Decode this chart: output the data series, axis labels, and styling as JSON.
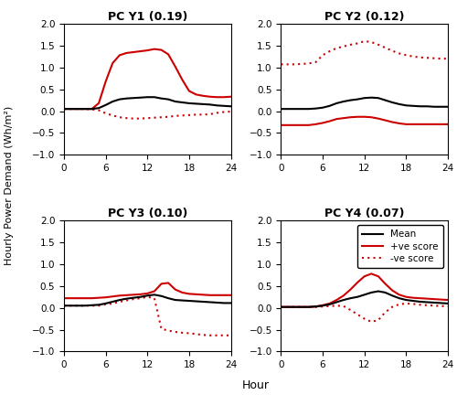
{
  "titles": [
    "PC Y1 (0.19)",
    "PC Y2 (0.12)",
    "PC Y3 (0.10)",
    "PC Y4 (0.07)"
  ],
  "ylabel": "Hourly Power Demand (Wh/m²)",
  "xlabel": "Hour",
  "ylim": [
    -1,
    2
  ],
  "yticks": [
    -1,
    -0.5,
    0,
    0.5,
    1,
    1.5,
    2
  ],
  "xticks": [
    0,
    6,
    12,
    18,
    24
  ],
  "xlim": [
    0,
    24
  ],
  "legend_labels": [
    "Mean",
    "+ve score",
    "-ve score"
  ],
  "mean_color": "#000000",
  "pos_color": "#cc0000",
  "neg_color": "#cc0000",
  "line_width": 1.5,
  "hours": [
    0,
    1,
    2,
    3,
    4,
    5,
    6,
    7,
    8,
    9,
    10,
    11,
    12,
    13,
    14,
    15,
    16,
    17,
    18,
    19,
    20,
    21,
    22,
    23,
    24
  ],
  "pc1_mean": [
    0.05,
    0.05,
    0.05,
    0.05,
    0.05,
    0.07,
    0.14,
    0.22,
    0.27,
    0.29,
    0.3,
    0.31,
    0.32,
    0.32,
    0.29,
    0.27,
    0.22,
    0.2,
    0.18,
    0.17,
    0.16,
    0.15,
    0.13,
    0.12,
    0.11
  ],
  "pc1_pos": [
    0.05,
    0.05,
    0.05,
    0.05,
    0.05,
    0.18,
    0.68,
    1.1,
    1.28,
    1.33,
    1.35,
    1.37,
    1.39,
    1.42,
    1.4,
    1.3,
    1.02,
    0.72,
    0.46,
    0.38,
    0.35,
    0.33,
    0.32,
    0.32,
    0.33
  ],
  "pc1_neg": [
    0.05,
    0.05,
    0.05,
    0.05,
    0.04,
    0.02,
    -0.05,
    -0.1,
    -0.14,
    -0.16,
    -0.17,
    -0.17,
    -0.16,
    -0.15,
    -0.14,
    -0.13,
    -0.11,
    -0.1,
    -0.09,
    -0.08,
    -0.08,
    -0.07,
    -0.04,
    -0.02,
    -0.01
  ],
  "pc2_mean": [
    0.05,
    0.05,
    0.05,
    0.05,
    0.05,
    0.06,
    0.08,
    0.12,
    0.18,
    0.22,
    0.25,
    0.27,
    0.3,
    0.31,
    0.3,
    0.25,
    0.2,
    0.16,
    0.13,
    0.12,
    0.11,
    0.11,
    0.1,
    0.1,
    0.1
  ],
  "pc2_pos": [
    -0.32,
    -0.32,
    -0.32,
    -0.32,
    -0.32,
    -0.3,
    -0.27,
    -0.23,
    -0.18,
    -0.16,
    -0.14,
    -0.13,
    -0.13,
    -0.14,
    -0.17,
    -0.21,
    -0.25,
    -0.28,
    -0.3,
    -0.3,
    -0.3,
    -0.3,
    -0.3,
    -0.3,
    -0.3
  ],
  "pc2_neg": [
    1.07,
    1.07,
    1.07,
    1.08,
    1.09,
    1.12,
    1.28,
    1.37,
    1.44,
    1.48,
    1.52,
    1.55,
    1.6,
    1.58,
    1.52,
    1.45,
    1.38,
    1.32,
    1.28,
    1.25,
    1.23,
    1.22,
    1.21,
    1.2,
    1.2
  ],
  "pc3_mean": [
    0.05,
    0.05,
    0.05,
    0.05,
    0.06,
    0.07,
    0.1,
    0.14,
    0.18,
    0.21,
    0.23,
    0.25,
    0.28,
    0.3,
    0.27,
    0.22,
    0.18,
    0.17,
    0.16,
    0.15,
    0.14,
    0.13,
    0.12,
    0.11,
    0.11
  ],
  "pc3_pos": [
    0.22,
    0.22,
    0.22,
    0.22,
    0.22,
    0.23,
    0.24,
    0.26,
    0.28,
    0.29,
    0.3,
    0.31,
    0.33,
    0.38,
    0.55,
    0.57,
    0.42,
    0.35,
    0.32,
    0.31,
    0.3,
    0.29,
    0.29,
    0.29,
    0.29
  ],
  "pc3_neg": [
    0.05,
    0.05,
    0.05,
    0.05,
    0.05,
    0.05,
    0.08,
    0.1,
    0.14,
    0.17,
    0.2,
    0.22,
    0.25,
    0.22,
    -0.48,
    -0.52,
    -0.55,
    -0.57,
    -0.58,
    -0.6,
    -0.62,
    -0.63,
    -0.63,
    -0.63,
    -0.63
  ],
  "pc4_mean": [
    0.02,
    0.02,
    0.02,
    0.02,
    0.02,
    0.03,
    0.05,
    0.08,
    0.13,
    0.18,
    0.22,
    0.25,
    0.3,
    0.35,
    0.38,
    0.35,
    0.28,
    0.22,
    0.18,
    0.16,
    0.14,
    0.13,
    0.12,
    0.11,
    0.1
  ],
  "pc4_pos": [
    0.02,
    0.02,
    0.02,
    0.02,
    0.02,
    0.03,
    0.06,
    0.1,
    0.18,
    0.28,
    0.42,
    0.58,
    0.72,
    0.78,
    0.72,
    0.55,
    0.4,
    0.3,
    0.25,
    0.23,
    0.22,
    0.21,
    0.2,
    0.19,
    0.18
  ],
  "pc4_neg": [
    0.02,
    0.02,
    0.02,
    0.02,
    0.02,
    0.02,
    0.03,
    0.04,
    0.05,
    0.04,
    -0.05,
    -0.15,
    -0.25,
    -0.32,
    -0.28,
    -0.1,
    0.02,
    0.08,
    0.1,
    0.09,
    0.07,
    0.06,
    0.05,
    0.04,
    0.04
  ]
}
